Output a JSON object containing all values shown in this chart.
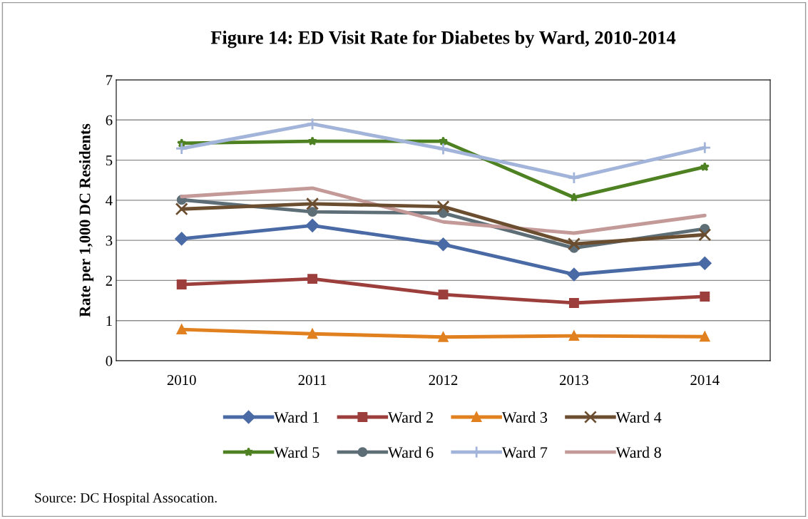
{
  "chart_data": {
    "type": "line",
    "title": "Figure 14: ED Visit Rate for Diabetes by Ward, 2010-2014",
    "ylabel": "Rate per 1,000 DC Residents",
    "categories": [
      "2010",
      "2011",
      "2012",
      "2013",
      "2014"
    ],
    "series": [
      {
        "name": "Ward 1",
        "color": "#4a6aa5",
        "marker": "diamond",
        "values": [
          3.04,
          3.37,
          2.9,
          2.15,
          2.43
        ]
      },
      {
        "name": "Ward 2",
        "color": "#9c3f3c",
        "marker": "square",
        "values": [
          1.9,
          2.04,
          1.65,
          1.44,
          1.6
        ]
      },
      {
        "name": "Ward 3",
        "color": "#e0801f",
        "marker": "triangle",
        "values": [
          0.78,
          0.67,
          0.59,
          0.62,
          0.6
        ]
      },
      {
        "name": "Ward 4",
        "color": "#6b4d2f",
        "marker": "cross",
        "values": [
          3.78,
          3.91,
          3.84,
          2.91,
          3.14
        ]
      },
      {
        "name": "Ward 5",
        "color": "#4e8122",
        "marker": "star",
        "values": [
          5.42,
          5.47,
          5.47,
          4.07,
          4.83
        ]
      },
      {
        "name": "Ward 6",
        "color": "#5e6e77",
        "marker": "circle",
        "values": [
          4.01,
          3.71,
          3.68,
          2.81,
          3.29
        ]
      },
      {
        "name": "Ward 7",
        "color": "#a3b4da",
        "marker": "plus",
        "values": [
          5.29,
          5.9,
          5.28,
          4.56,
          5.31
        ]
      },
      {
        "name": "Ward 8",
        "color": "#c49a99",
        "marker": "none",
        "values": [
          4.09,
          4.3,
          3.46,
          3.18,
          3.62
        ]
      }
    ],
    "ylim": [
      0,
      7
    ],
    "yticks": [
      0,
      1,
      2,
      3,
      4,
      5,
      6,
      7
    ],
    "grid": "y",
    "legend": "bottom",
    "line_style": "solid",
    "annotations": [
      "Source: DC Hospital Assocation."
    ]
  }
}
